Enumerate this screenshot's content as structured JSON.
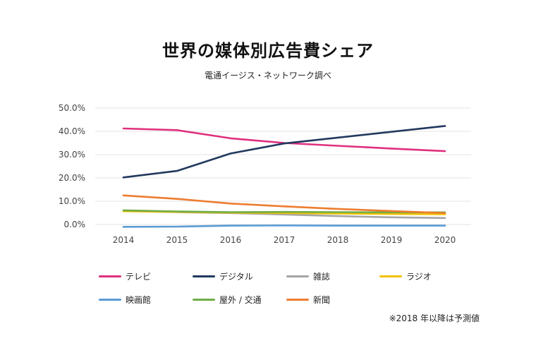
{
  "chart_data": {
    "type": "line",
    "title": "世界の媒体別広告費シェア",
    "subtitle": "電通イージス・ネットワーク調べ",
    "x": [
      "2014",
      "2015",
      "2016",
      "2017",
      "2018",
      "2019",
      "2020"
    ],
    "y_ticks": [
      "0.0%",
      "10.0%",
      "20.0%",
      "30.0%",
      "40.0%",
      "50.0%"
    ],
    "ylim": [
      0,
      50
    ],
    "grid": true,
    "legend_position": "bottom",
    "series": [
      {
        "name": "テレビ",
        "color": "#e0307f",
        "values": [
          41.2,
          40.5,
          37.0,
          35.0,
          33.8,
          32.6,
          31.5
        ]
      },
      {
        "name": "デジタル",
        "color": "#22395e",
        "values": [
          20.2,
          23.0,
          30.5,
          34.8,
          37.3,
          39.8,
          42.3
        ]
      },
      {
        "name": "雑誌",
        "color": "#a5a5a5",
        "values": [
          5.8,
          5.3,
          4.9,
          4.3,
          3.6,
          3.1,
          2.8
        ]
      },
      {
        "name": "ラジオ",
        "color": "#f2c200",
        "values": [
          5.7,
          5.4,
          5.1,
          4.9,
          4.7,
          4.5,
          4.4
        ]
      },
      {
        "name": "映画館",
        "color": "#5b9bd5",
        "values": [
          -1.0,
          -0.9,
          -0.5,
          -0.4,
          -0.5,
          -0.5,
          -0.5
        ]
      },
      {
        "name": "屋外 / 交通",
        "color": "#70ad47",
        "values": [
          6.1,
          5.6,
          5.3,
          5.4,
          5.3,
          5.2,
          5.2
        ]
      },
      {
        "name": "新聞",
        "color": "#ed7d31",
        "values": [
          12.5,
          11.0,
          9.0,
          7.8,
          6.7,
          5.8,
          4.9
        ]
      }
    ]
  },
  "footnote": "※2018 年以降は予測値"
}
